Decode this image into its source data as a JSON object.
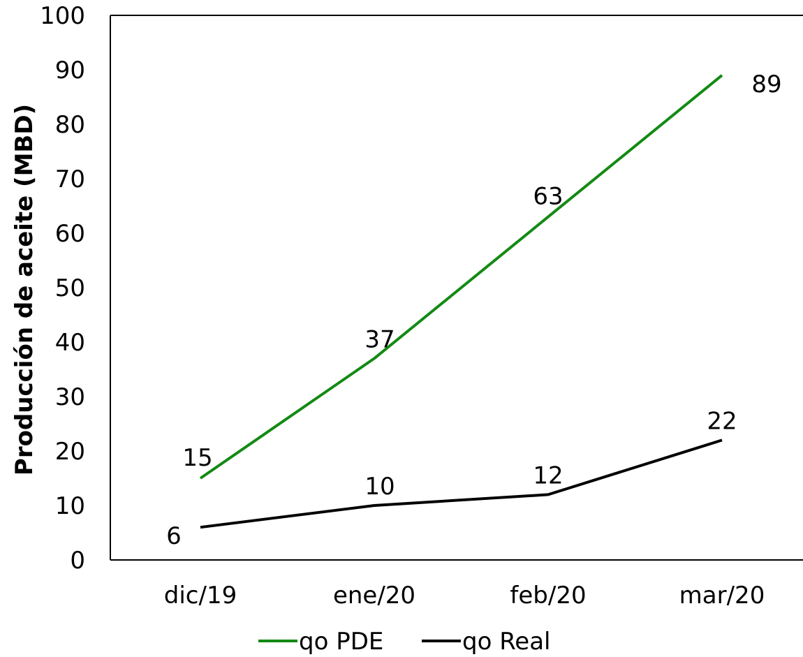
{
  "chart_data": {
    "type": "line",
    "categories": [
      "dic/19",
      "ene/20",
      "feb/20",
      "mar/20"
    ],
    "series": [
      {
        "name": "qo PDE",
        "values": [
          15,
          37,
          63,
          89
        ],
        "color": "#138a13"
      },
      {
        "name": "qo Real",
        "values": [
          6,
          10,
          12,
          22
        ],
        "color": "#000000"
      }
    ],
    "title": "",
    "xlabel": "",
    "ylabel": "Producción de aceite (MBD)",
    "ylim": [
      0,
      100
    ],
    "yticks": [
      0,
      10,
      20,
      30,
      40,
      50,
      60,
      70,
      80,
      90,
      100
    ],
    "grid": false,
    "legend": "bottom"
  }
}
